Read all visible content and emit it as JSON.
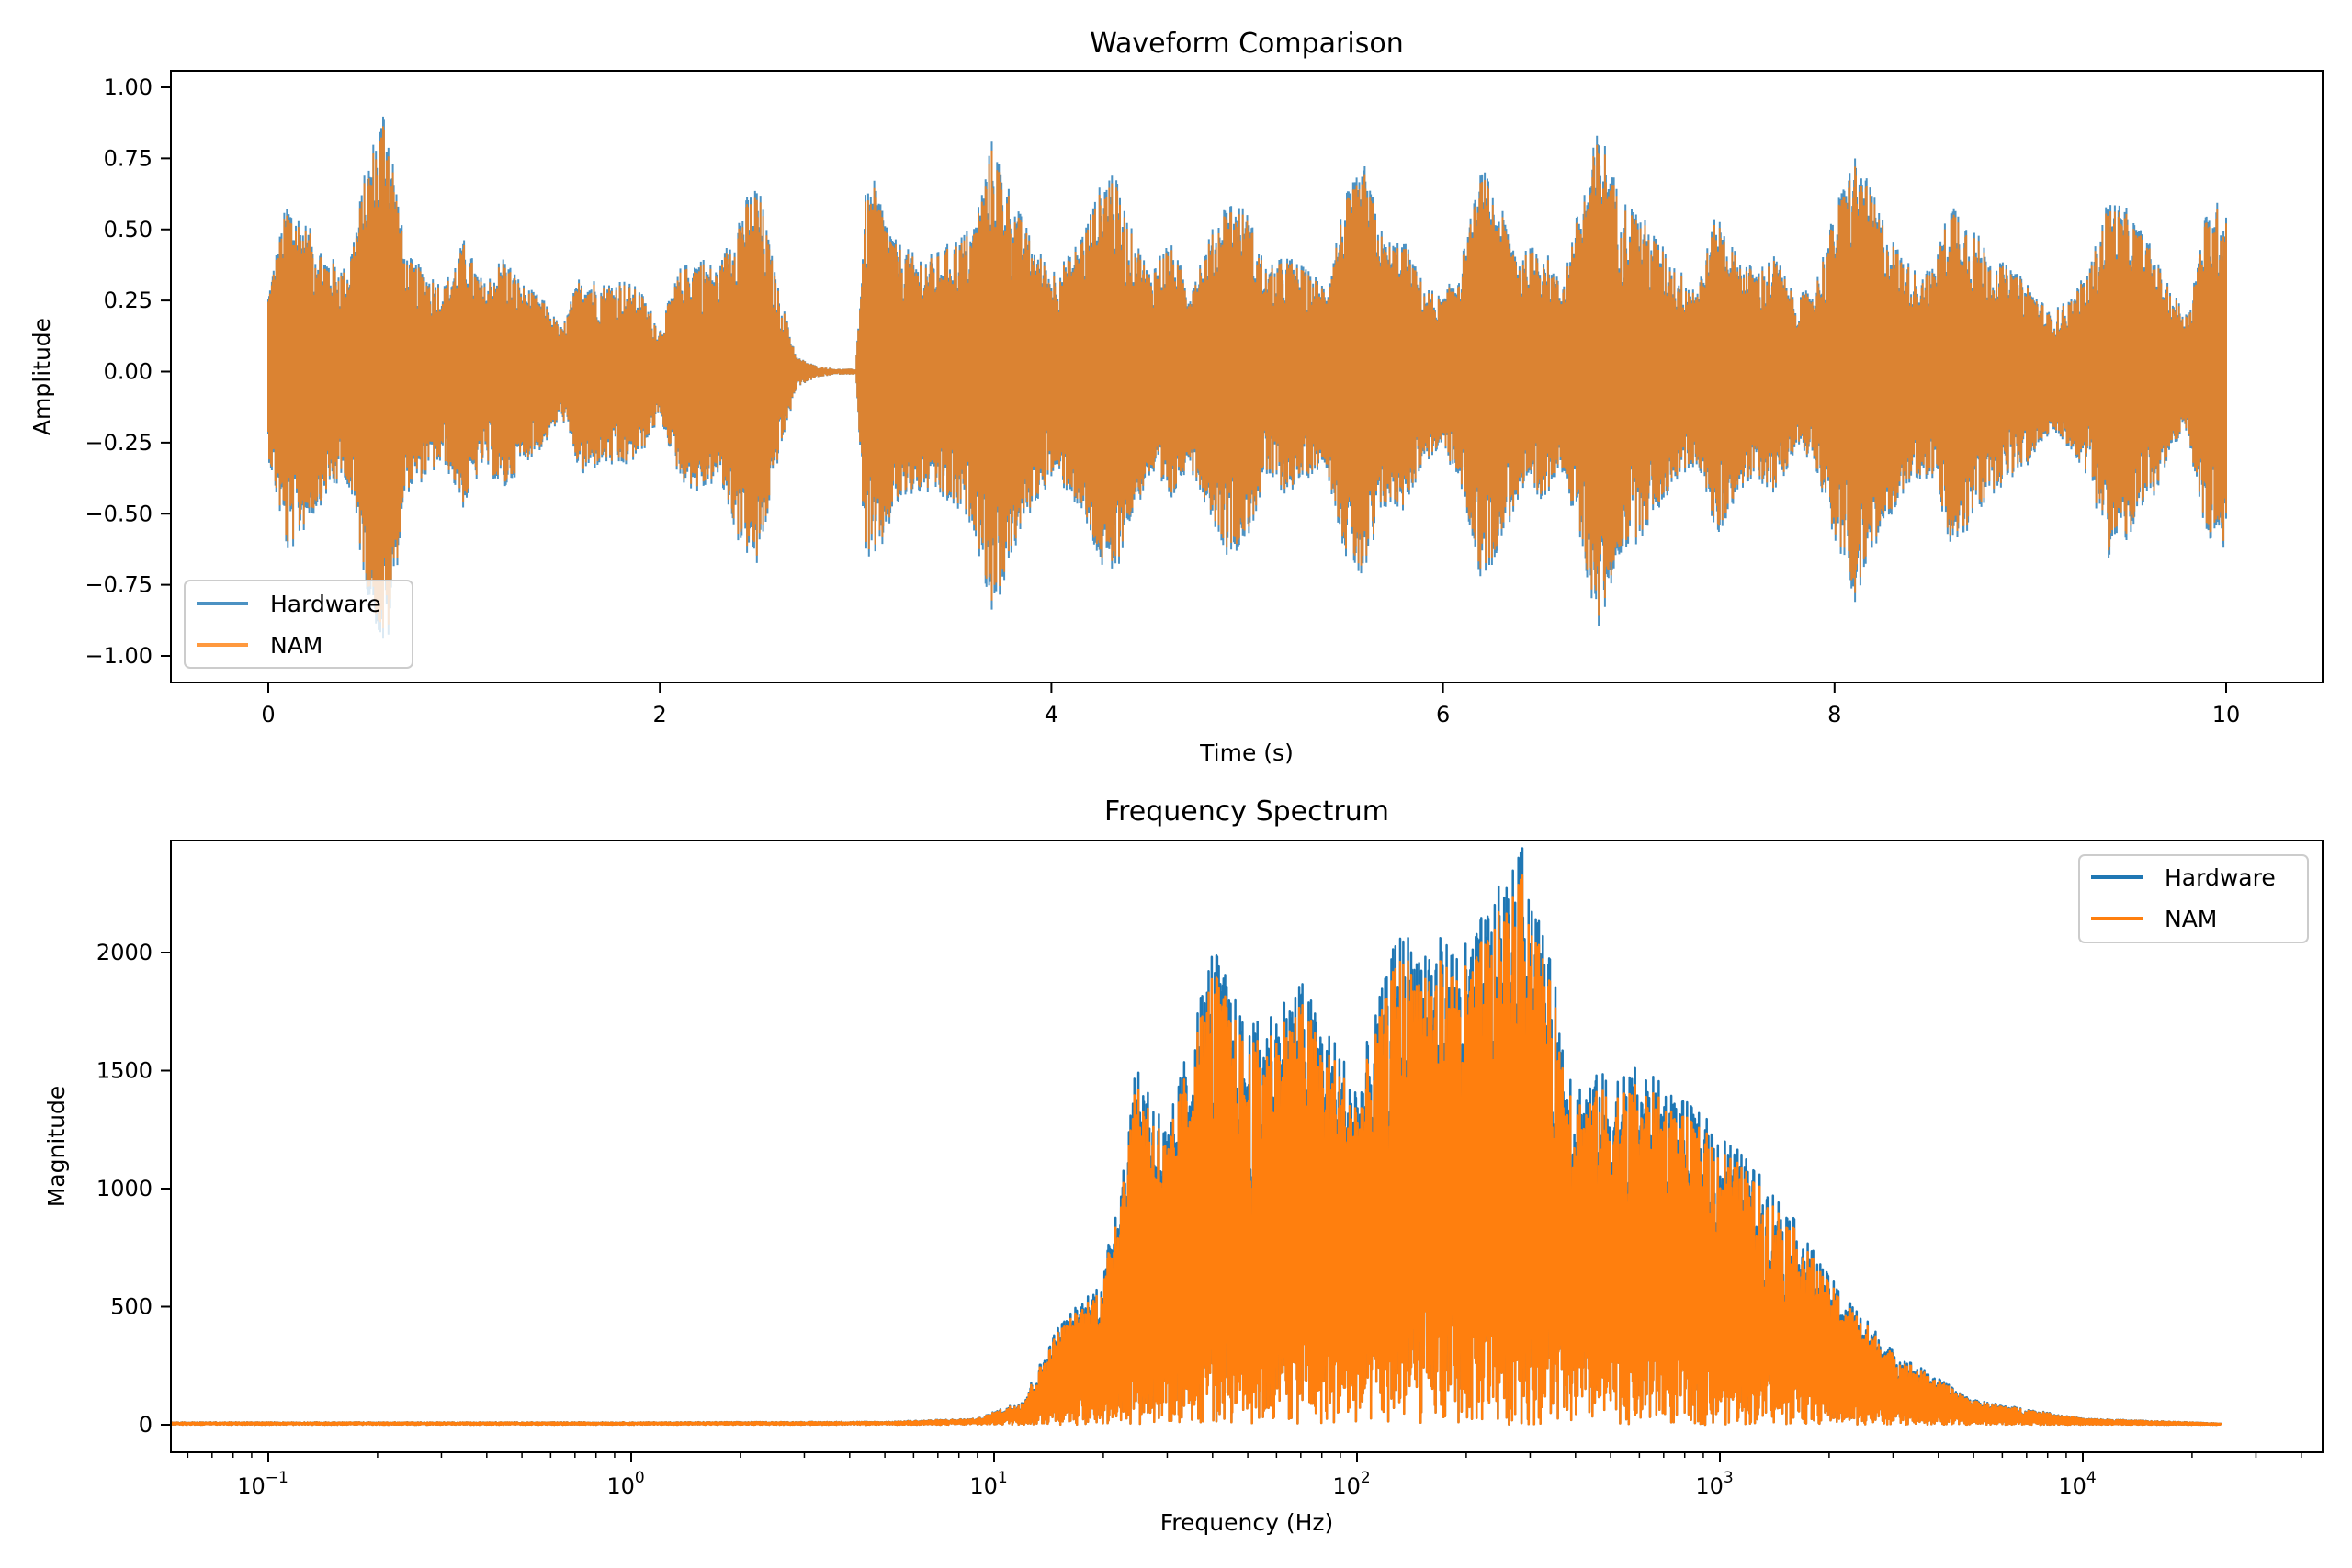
{
  "chart_data": [
    {
      "type": "line",
      "title": "Waveform Comparison",
      "xlabel": "Time (s)",
      "ylabel": "Amplitude",
      "xlim": [
        -0.5,
        10.5
      ],
      "ylim": [
        -1.07,
        1.07
      ],
      "xticks": [
        "0",
        "2",
        "4",
        "6",
        "8",
        "10"
      ],
      "yticks": [
        "−1.00",
        "−0.75",
        "−0.50",
        "−0.25",
        "0.00",
        "0.25",
        "0.50",
        "0.75",
        "1.00"
      ],
      "legend_position": "lower-left",
      "grid": false,
      "series": [
        {
          "name": "Hardware",
          "color": "#1f77b4",
          "alpha": 0.8
        },
        {
          "name": "NAM",
          "color": "#ff7f0e",
          "alpha": 0.8
        }
      ],
      "amplitude_envelope": [
        [
          0,
          0.28
        ],
        [
          0.1,
          0.6
        ],
        [
          0.2,
          0.5
        ],
        [
          0.3,
          0.4
        ],
        [
          0.4,
          0.35
        ],
        [
          0.5,
          0.7
        ],
        [
          0.6,
          0.95
        ],
        [
          0.7,
          0.4
        ],
        [
          0.8,
          0.35
        ],
        [
          0.9,
          0.3
        ],
        [
          1.0,
          0.45
        ],
        [
          1.1,
          0.3
        ],
        [
          1.2,
          0.4
        ],
        [
          1.3,
          0.3
        ],
        [
          1.4,
          0.25
        ],
        [
          1.5,
          0.15
        ],
        [
          1.6,
          0.35
        ],
        [
          1.7,
          0.3
        ],
        [
          1.8,
          0.32
        ],
        [
          1.9,
          0.28
        ],
        [
          2.0,
          0.15
        ],
        [
          2.1,
          0.35
        ],
        [
          2.2,
          0.4
        ],
        [
          2.3,
          0.35
        ],
        [
          2.4,
          0.55
        ],
        [
          2.5,
          0.65
        ],
        [
          2.6,
          0.3
        ],
        [
          2.7,
          0.05
        ],
        [
          2.8,
          0.02
        ],
        [
          2.9,
          0.01
        ],
        [
          3.0,
          0.01
        ],
        [
          3.05,
          0.6
        ],
        [
          3.1,
          0.65
        ],
        [
          3.2,
          0.45
        ],
        [
          3.3,
          0.4
        ],
        [
          3.4,
          0.4
        ],
        [
          3.5,
          0.45
        ],
        [
          3.6,
          0.5
        ],
        [
          3.7,
          0.8
        ],
        [
          3.8,
          0.6
        ],
        [
          3.9,
          0.45
        ],
        [
          4.0,
          0.35
        ],
        [
          4.1,
          0.4
        ],
        [
          4.2,
          0.55
        ],
        [
          4.3,
          0.72
        ],
        [
          4.4,
          0.5
        ],
        [
          4.5,
          0.35
        ],
        [
          4.6,
          0.45
        ],
        [
          4.7,
          0.3
        ],
        [
          4.8,
          0.45
        ],
        [
          4.9,
          0.6
        ],
        [
          5.0,
          0.55
        ],
        [
          5.1,
          0.35
        ],
        [
          5.2,
          0.4
        ],
        [
          5.3,
          0.35
        ],
        [
          5.4,
          0.3
        ],
        [
          5.5,
          0.6
        ],
        [
          5.6,
          0.7
        ],
        [
          5.7,
          0.45
        ],
        [
          5.8,
          0.45
        ],
        [
          5.9,
          0.3
        ],
        [
          6.0,
          0.25
        ],
        [
          6.1,
          0.4
        ],
        [
          6.2,
          0.7
        ],
        [
          6.3,
          0.55
        ],
        [
          6.4,
          0.4
        ],
        [
          6.5,
          0.45
        ],
        [
          6.6,
          0.3
        ],
        [
          6.8,
          0.85
        ],
        [
          6.9,
          0.6
        ],
        [
          7.0,
          0.55
        ],
        [
          7.1,
          0.45
        ],
        [
          7.2,
          0.35
        ],
        [
          7.3,
          0.3
        ],
        [
          7.4,
          0.55
        ],
        [
          7.5,
          0.4
        ],
        [
          7.6,
          0.35
        ],
        [
          7.7,
          0.4
        ],
        [
          7.8,
          0.25
        ],
        [
          7.9,
          0.3
        ],
        [
          8.0,
          0.55
        ],
        [
          8.1,
          0.75
        ],
        [
          8.2,
          0.6
        ],
        [
          8.3,
          0.45
        ],
        [
          8.4,
          0.35
        ],
        [
          8.5,
          0.35
        ],
        [
          8.6,
          0.6
        ],
        [
          8.7,
          0.5
        ],
        [
          8.8,
          0.4
        ],
        [
          8.9,
          0.35
        ],
        [
          9.0,
          0.3
        ],
        [
          9.1,
          0.2
        ],
        [
          9.2,
          0.25
        ],
        [
          9.3,
          0.35
        ],
        [
          9.4,
          0.6
        ],
        [
          9.5,
          0.55
        ],
        [
          9.6,
          0.45
        ],
        [
          9.7,
          0.3
        ],
        [
          9.8,
          0.2
        ],
        [
          9.9,
          0.55
        ],
        [
          10.0,
          0.6
        ]
      ]
    },
    {
      "type": "line",
      "title": "Frequency Spectrum",
      "xlabel": "Frequency (Hz)",
      "ylabel": "Magnitude",
      "xscale": "log",
      "xlim": [
        0.054,
        45000
      ],
      "ylim": [
        -120,
        2480
      ],
      "xticks": [
        {
          "base": "10",
          "exp": "−1"
        },
        {
          "base": "10",
          "exp": "0"
        },
        {
          "base": "10",
          "exp": "1"
        },
        {
          "base": "10",
          "exp": "2"
        },
        {
          "base": "10",
          "exp": "3"
        },
        {
          "base": "10",
          "exp": "4"
        }
      ],
      "yticks": [
        "0",
        "500",
        "1000",
        "1500",
        "2000"
      ],
      "legend_position": "upper-right",
      "grid": false,
      "series": [
        {
          "name": "Hardware",
          "color": "#1f77b4"
        },
        {
          "name": "NAM",
          "color": "#ff7f0e"
        }
      ],
      "magnitude_peak_envelope": [
        [
          0.054,
          10
        ],
        [
          1,
          10
        ],
        [
          5,
          12
        ],
        [
          9,
          25
        ],
        [
          12,
          100
        ],
        [
          15,
          400
        ],
        [
          20,
          600
        ],
        [
          25,
          1500
        ],
        [
          30,
          1200
        ],
        [
          40,
          1950
        ],
        [
          50,
          1600
        ],
        [
          70,
          1800
        ],
        [
          100,
          1400
        ],
        [
          130,
          2000
        ],
        [
          200,
          1950
        ],
        [
          290,
          2350
        ],
        [
          400,
          1400
        ],
        [
          600,
          1450
        ],
        [
          1000,
          1200
        ],
        [
          1500,
          900
        ],
        [
          2000,
          600
        ],
        [
          3000,
          300
        ],
        [
          5000,
          100
        ],
        [
          10000,
          25
        ],
        [
          24000,
          5
        ]
      ]
    }
  ]
}
